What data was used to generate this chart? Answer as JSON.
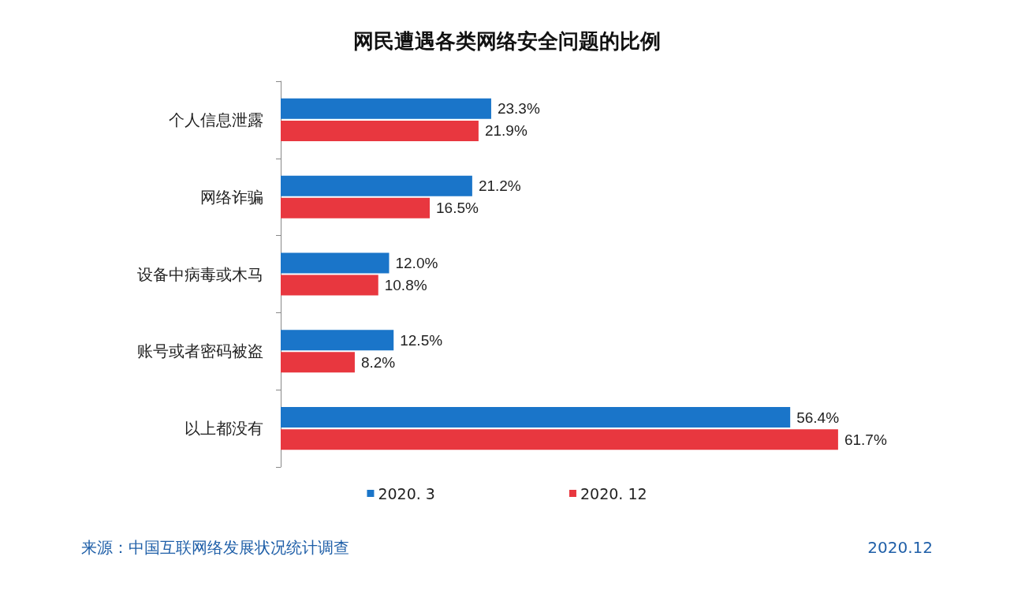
{
  "chart_data": {
    "type": "bar",
    "orientation": "horizontal",
    "title": "网民遭遇各类网络安全问题的比例",
    "categories": [
      "个人信息泄露",
      "网络诈骗",
      "设备中病毒或木马",
      "账号或者密码被盗",
      "以上都没有"
    ],
    "series": [
      {
        "name": "2020. 3",
        "color": "#1a75c9",
        "values": [
          23.3,
          21.2,
          12.0,
          12.5,
          56.4
        ],
        "value_labels": [
          "23.3%",
          "21.2%",
          "12.0%",
          "12.5%",
          "56.4%"
        ]
      },
      {
        "name": "2020. 12",
        "color": "#e8373f",
        "values": [
          21.9,
          16.5,
          10.8,
          8.2,
          61.7
        ],
        "value_labels": [
          "21.9%",
          "16.5%",
          "10.8%",
          "8.2%",
          "61.7%"
        ]
      }
    ],
    "legend": "bottom",
    "annotations": [
      "来源：中国互联网络发展状况统计调查",
      "2020.12"
    ]
  }
}
